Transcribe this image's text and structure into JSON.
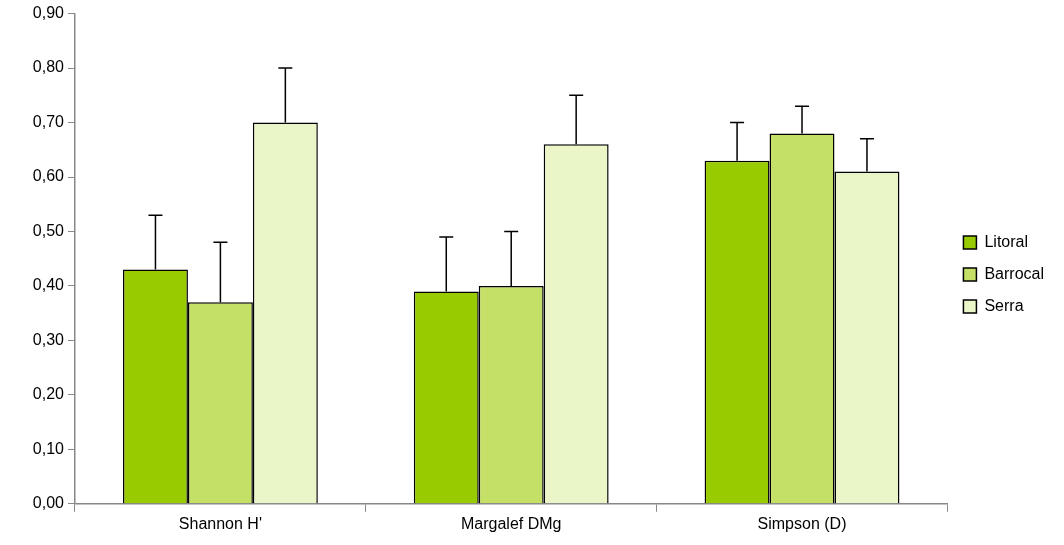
{
  "chart_data": {
    "type": "bar",
    "categories": [
      "Shannon H'",
      "Margalef DMg",
      "Simpson (D)"
    ],
    "series": [
      {
        "name": "Litoral",
        "color": "#99cc00",
        "values": [
          0.43,
          0.39,
          0.63
        ],
        "errors": [
          [
            0.43,
            0.53
          ],
          [
            0.39,
            0.49
          ],
          [
            0.63,
            0.7
          ]
        ]
      },
      {
        "name": "Barrocal",
        "color": "#c4e066",
        "values": [
          0.37,
          0.4,
          0.68
        ],
        "errors": [
          [
            0.37,
            0.48
          ],
          [
            0.4,
            0.5
          ],
          [
            0.68,
            0.73
          ]
        ]
      },
      {
        "name": "Serra",
        "color": "#eaf5c8",
        "values": [
          0.7,
          0.66,
          0.61
        ],
        "errors": [
          [
            0.7,
            0.8
          ],
          [
            0.66,
            0.75
          ],
          [
            0.61,
            0.67
          ]
        ]
      }
    ],
    "ylim": [
      0,
      0.9
    ],
    "yticks": [
      {
        "value": 0,
        "label": "0,00"
      },
      {
        "value": 0.1,
        "label": "0,10"
      },
      {
        "value": 0.2,
        "label": "0,20"
      },
      {
        "value": 0.3,
        "label": "0,30"
      },
      {
        "value": 0.4,
        "label": "0,40"
      },
      {
        "value": 0.5,
        "label": "0,50"
      },
      {
        "value": 0.6,
        "label": "0,60"
      },
      {
        "value": 0.7,
        "label": "0,70"
      },
      {
        "value": 0.8,
        "label": "0,80"
      },
      {
        "value": 0.9,
        "label": "0,90"
      }
    ],
    "grid": false,
    "legend": "right"
  }
}
